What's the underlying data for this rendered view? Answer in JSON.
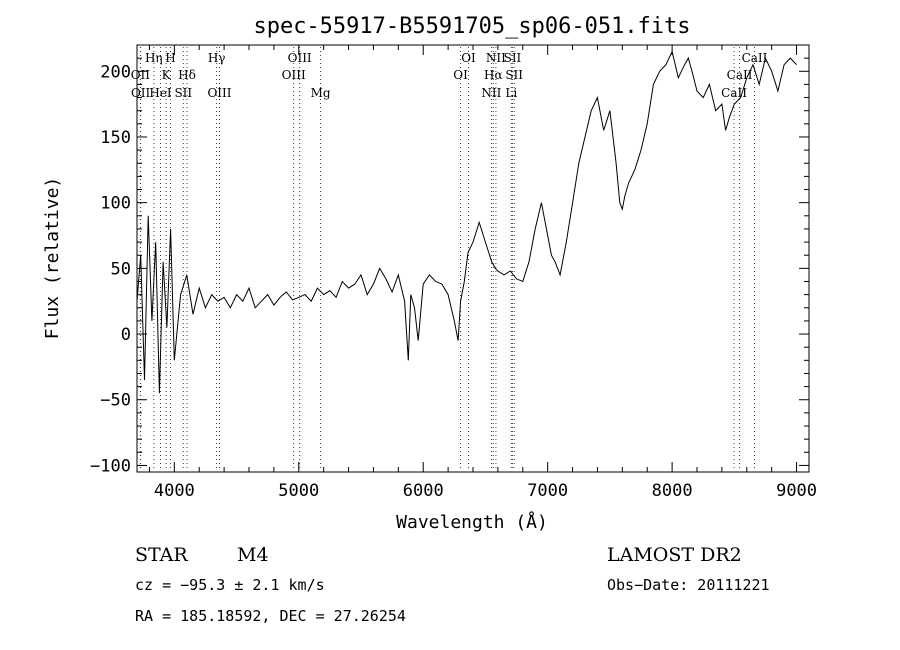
{
  "chart_data": {
    "type": "line",
    "title": "spec-55917-B5591705_sp06-051.fits",
    "xlabel": "Wavelength (Å)",
    "ylabel": "Flux (relative)",
    "xlim": [
      3700,
      9100
    ],
    "ylim": [
      -105,
      220
    ],
    "xticks": [
      4000,
      5000,
      6000,
      7000,
      8000,
      9000
    ],
    "yticks": [
      -100,
      -50,
      0,
      50,
      100,
      150,
      200
    ],
    "grid": false,
    "series": [
      {
        "x": [
          3700,
          3730,
          3760,
          3790,
          3820,
          3850,
          3880,
          3910,
          3940,
          3970,
          4000,
          4050,
          4100,
          4150,
          4200,
          4250,
          4300,
          4350,
          4400,
          4450,
          4500,
          4550,
          4600,
          4650,
          4700,
          4750,
          4800,
          4850,
          4900,
          4950,
          5000,
          5050,
          5100,
          5150,
          5200,
          5250,
          5300,
          5350,
          5400,
          5450,
          5500,
          5550,
          5600,
          5650,
          5700,
          5750,
          5800,
          5850,
          5880,
          5900,
          5930,
          5960,
          6000,
          6050,
          6100,
          6150,
          6200,
          6250,
          6280,
          6300,
          6330,
          6360,
          6400,
          6450,
          6500,
          6550,
          6580,
          6600,
          6650,
          6700,
          6750,
          6800,
          6850,
          6900,
          6950,
          7000,
          7030,
          7060,
          7100,
          7150,
          7200,
          7250,
          7300,
          7350,
          7400,
          7450,
          7500,
          7550,
          7580,
          7600,
          7620,
          7650,
          7700,
          7750,
          7800,
          7850,
          7900,
          7950,
          8000,
          8050,
          8100,
          8130,
          8160,
          8200,
          8250,
          8300,
          8350,
          8400,
          8430,
          8460,
          8500,
          8550,
          8600,
          8650,
          8700,
          8750,
          8800,
          8850,
          8900,
          8950,
          9000
        ],
        "y": [
          25,
          60,
          -35,
          90,
          10,
          70,
          -45,
          55,
          5,
          80,
          -20,
          30,
          45,
          15,
          35,
          20,
          30,
          25,
          28,
          20,
          30,
          25,
          35,
          20,
          25,
          30,
          22,
          28,
          32,
          26,
          28,
          30,
          25,
          35,
          30,
          33,
          28,
          40,
          35,
          38,
          45,
          30,
          38,
          50,
          42,
          32,
          45,
          25,
          -20,
          30,
          20,
          -5,
          38,
          45,
          40,
          38,
          30,
          10,
          -5,
          25,
          40,
          62,
          70,
          85,
          70,
          55,
          50,
          48,
          45,
          48,
          42,
          40,
          55,
          80,
          100,
          75,
          60,
          55,
          45,
          70,
          100,
          130,
          150,
          170,
          180,
          155,
          170,
          130,
          100,
          95,
          105,
          115,
          125,
          140,
          160,
          190,
          200,
          205,
          215,
          195,
          205,
          210,
          200,
          185,
          180,
          190,
          170,
          175,
          155,
          165,
          175,
          180,
          195,
          205,
          190,
          210,
          200,
          185,
          205,
          210,
          205
        ]
      }
    ],
    "spectral_lines": [
      {
        "label": "OII",
        "wavelength": 3727,
        "row": 2
      },
      {
        "label": "OII",
        "wavelength": 3729,
        "row": 3
      },
      {
        "label": "Hη",
        "wavelength": 3835,
        "row": 1
      },
      {
        "label": "H",
        "wavelength": 3969,
        "row": 1
      },
      {
        "label": "K",
        "wavelength": 3934,
        "row": 2
      },
      {
        "label": "HeI",
        "wavelength": 3889,
        "row": 3
      },
      {
        "label": "SII",
        "wavelength": 4072,
        "row": 3
      },
      {
        "label": "Hδ",
        "wavelength": 4102,
        "row": 2
      },
      {
        "label": "Hγ",
        "wavelength": 4340,
        "row": 1
      },
      {
        "label": "OIII",
        "wavelength": 4363,
        "row": 3
      },
      {
        "label": "OIII",
        "wavelength": 5007,
        "row": 1
      },
      {
        "label": "OIII",
        "wavelength": 4959,
        "row": 2
      },
      {
        "label": "Mg",
        "wavelength": 5175,
        "row": 3
      },
      {
        "label": "OI",
        "wavelength": 6364,
        "row": 1
      },
      {
        "label": "OI",
        "wavelength": 6300,
        "row": 2
      },
      {
        "label": "NII",
        "wavelength": 6584,
        "row": 1
      },
      {
        "label": "SII",
        "wavelength": 6717,
        "row": 1
      },
      {
        "label": "Hα",
        "wavelength": 6563,
        "row": 2
      },
      {
        "label": "SII",
        "wavelength": 6731,
        "row": 2
      },
      {
        "label": "NII",
        "wavelength": 6548,
        "row": 3
      },
      {
        "label": "Li",
        "wavelength": 6708,
        "row": 3
      },
      {
        "label": "CaII",
        "wavelength": 8662,
        "row": 1
      },
      {
        "label": "CaII",
        "wavelength": 8542,
        "row": 2
      },
      {
        "label": "CaII",
        "wavelength": 8498,
        "row": 3
      }
    ]
  },
  "footer": {
    "object_class": "STAR",
    "subclass": "M4",
    "survey": "LAMOST DR2",
    "cz": "cz = −95.3 ± 2.1 km/s",
    "obs_date": "Obs−Date: 20111221",
    "coords": "RA = 185.18592, DEC =  27.26254"
  },
  "colors": {
    "spectrum": "#000000",
    "line_markers": "#cc0000",
    "axes": "#000000"
  }
}
